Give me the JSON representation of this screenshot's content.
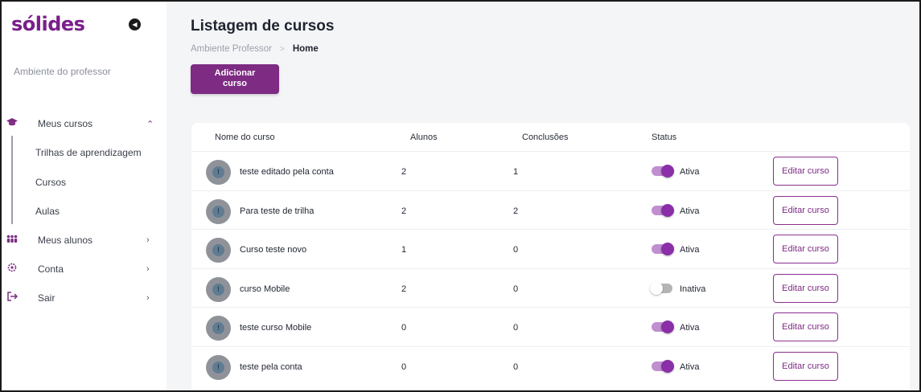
{
  "brand": {
    "logo": "sólides",
    "accent": "#7d2b83",
    "logo_color": "#7a1f8a"
  },
  "sidebar": {
    "environment": "Ambiente do professor",
    "items": [
      {
        "label": "Meus cursos",
        "icon": "graduation-cap-icon"
      },
      {
        "label": "Meus alunos",
        "icon": "people-icon"
      },
      {
        "label": "Conta",
        "icon": "gear-icon"
      },
      {
        "label": "Sair",
        "icon": "logout-icon"
      }
    ],
    "subitems": [
      {
        "label": "Trilhas de aprendizagem"
      },
      {
        "label": "Cursos"
      },
      {
        "label": "Aulas"
      }
    ]
  },
  "page": {
    "title": "Listagem de cursos",
    "breadcrumb": {
      "parent": "Ambiente Professor",
      "current": "Home"
    },
    "add_button": {
      "line1": "Adicionar",
      "line2": "curso"
    }
  },
  "table": {
    "headers": [
      "Nome do curso",
      "Alunos",
      "Conclusões",
      "Status"
    ],
    "edit_label": "Editar curso",
    "rows": [
      {
        "name": "teste editado pela conta",
        "alunos": "2",
        "conclusoes": "1",
        "status": "Ativa",
        "active": true
      },
      {
        "name": "Para teste de trilha",
        "alunos": "2",
        "conclusoes": "2",
        "status": "Ativa",
        "active": true
      },
      {
        "name": "Curso teste  novo",
        "alunos": "1",
        "conclusoes": "0",
        "status": "Ativa",
        "active": true
      },
      {
        "name": "curso Mobile",
        "alunos": "2",
        "conclusoes": "0",
        "status": "Inativa",
        "active": false
      },
      {
        "name": "teste curso Mobile",
        "alunos": "0",
        "conclusoes": "0",
        "status": "Ativa",
        "active": true
      },
      {
        "name": "teste pela conta",
        "alunos": "0",
        "conclusoes": "0",
        "status": "Ativa",
        "active": true
      }
    ]
  }
}
